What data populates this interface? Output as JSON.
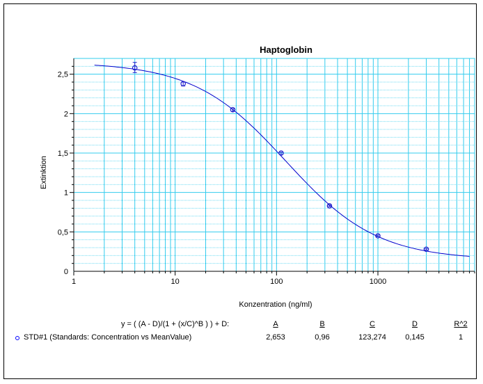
{
  "colors": {
    "grid": "#33ccee",
    "curve": "#0000cc",
    "points": "#2222cc",
    "axis": "#000000"
  },
  "chart_data": {
    "type": "scatter",
    "title": "Haptoglobin",
    "xlabel": "Konzentration (ng/ml)",
    "ylabel": "Extinktion",
    "xscale": "log",
    "xlim": [
      1,
      9000
    ],
    "ylim": [
      0,
      2.7
    ],
    "grid": true,
    "x_tick_labels": [
      "1",
      "10",
      "100",
      "1000"
    ],
    "x_tick_values": [
      1,
      10,
      100,
      1000
    ],
    "y_tick_labels": [
      "0",
      "0,5",
      "1",
      "1,5",
      "2",
      "2,5"
    ],
    "y_tick_values": [
      0,
      0.5,
      1,
      1.5,
      2,
      2.5
    ],
    "series": [
      {
        "name": "STD#1 (Standards: Concentration vs MeanValue)",
        "x": [
          4,
          12,
          37,
          111,
          333,
          1000,
          3000
        ],
        "y": [
          2.58,
          2.38,
          2.05,
          1.5,
          0.83,
          0.45,
          0.28
        ],
        "error_low": [
          2.52,
          2.35,
          2.03,
          1.48,
          0.82,
          0.44,
          0.27
        ],
        "error_high": [
          2.65,
          2.4,
          2.06,
          1.51,
          0.84,
          0.46,
          0.29
        ]
      }
    ],
    "fit": {
      "model": "4PL",
      "equation": "y = ( (A - D)/(1 + (x/C)^B ) ) + D:",
      "A": 2.653,
      "B": 0.96,
      "C": 123.274,
      "D": 0.145,
      "x_range": [
        1.6,
        8000
      ]
    }
  },
  "legend": {
    "equation": "y = ( (A - D)/(1 + (x/C)^B ) ) + D:",
    "headers": [
      "A",
      "B",
      "C",
      "D",
      "R^2"
    ],
    "series_label": "STD#1 (Standards: Concentration vs MeanValue)",
    "values": [
      "2,653",
      "0,96",
      "123,274",
      "0,145",
      "1"
    ]
  }
}
